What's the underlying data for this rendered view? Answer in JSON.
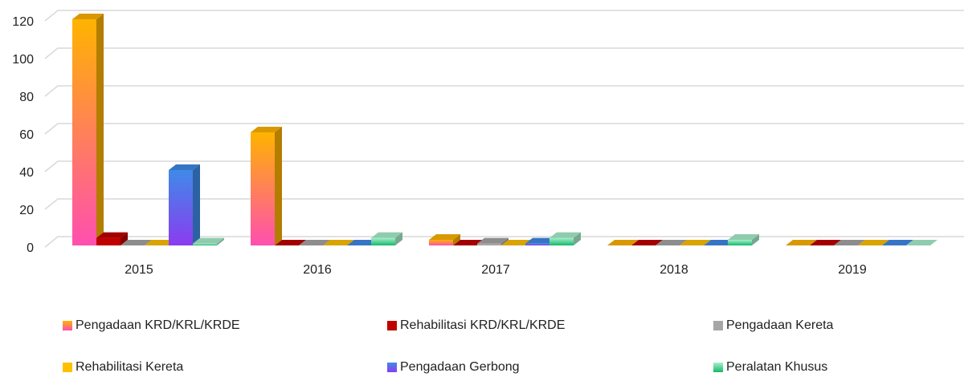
{
  "chart_data": {
    "type": "bar3d",
    "categories": [
      "2015",
      "2016",
      "2017",
      "2018",
      "2019"
    ],
    "series": [
      {
        "name": "Pengadaan KRD/KRL/KRDE",
        "color": "#f7a21b",
        "gradient": [
          "#ff4fb0",
          "#ffb300"
        ],
        "values": [
          120,
          60,
          3,
          0,
          0
        ]
      },
      {
        "name": "Rehabilitasi KRD/KRL/KRDE",
        "color": "#c00000",
        "values": [
          4,
          0,
          0,
          0,
          0
        ]
      },
      {
        "name": "Pengadaan Kereta",
        "color": "#a6a6a6",
        "values": [
          0,
          0,
          1,
          0,
          0
        ]
      },
      {
        "name": "Rehabilitasi Kereta",
        "color": "#ffc000",
        "values": [
          0,
          0,
          0,
          0,
          0
        ]
      },
      {
        "name": "Pengadaan Gerbong",
        "color": "#4472c4",
        "gradient": [
          "#8a3cf0",
          "#3f8ae8"
        ],
        "values": [
          40,
          0,
          1,
          0,
          0
        ]
      },
      {
        "name": "Peralatan Khusus",
        "color": "#2ecc71",
        "gradient": [
          "#14b86a",
          "#a8f0cc"
        ],
        "values": [
          1,
          4,
          4,
          3,
          0
        ]
      }
    ],
    "ylim": [
      0,
      120
    ],
    "yticks": [
      0,
      20,
      40,
      60,
      80,
      100,
      120
    ],
    "grid": true,
    "legend": "bottom"
  }
}
